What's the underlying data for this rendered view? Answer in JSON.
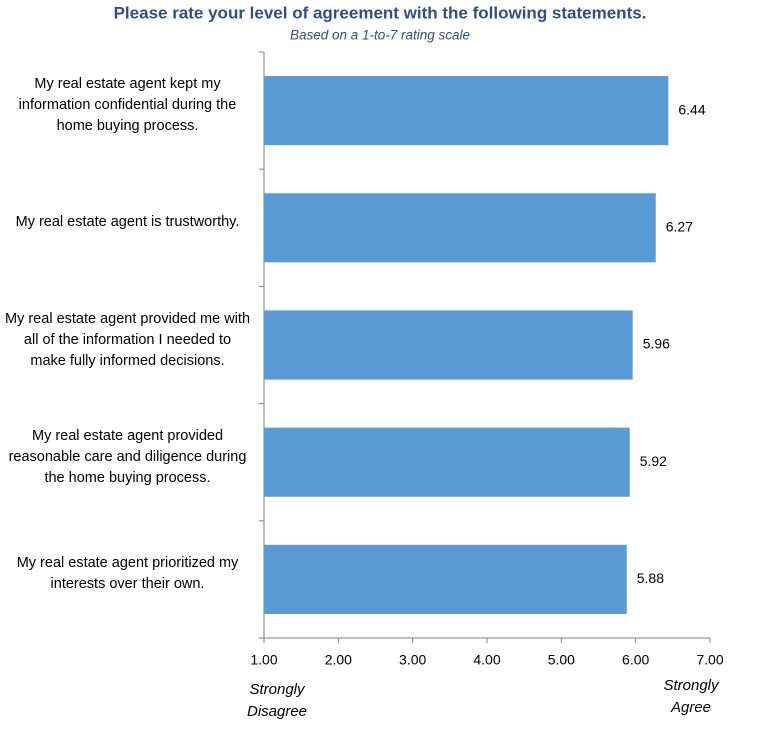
{
  "chart_data": {
    "type": "bar",
    "orientation": "horizontal",
    "title": "Please rate your level of agreement with the following statements.",
    "subtitle": "Based on a 1-to-7 rating scale",
    "categories": [
      "My real estate agent kept my information confidential during the home buying process.",
      "My real estate agent is trustworthy.",
      "My real estate agent provided me with all of the information I needed to make fully informed decisions.",
      "My real estate agent provided reasonable care and diligence during the home buying process.",
      "My real estate agent prioritized my interests over their own."
    ],
    "values": [
      6.44,
      6.27,
      5.96,
      5.92,
      5.88
    ],
    "color": "#5b9bd5",
    "xlim": [
      1,
      7
    ],
    "xticks": [
      {
        "value": 1,
        "label": "1.00"
      },
      {
        "value": 2,
        "label": "2.00"
      },
      {
        "value": 3,
        "label": "3.00"
      },
      {
        "value": 4,
        "label": "4.00"
      },
      {
        "value": 5,
        "label": "5.00"
      },
      {
        "value": 6,
        "label": "6.00"
      },
      {
        "value": 7,
        "label": "7.00"
      }
    ],
    "x_low_label": "Strongly Disagree",
    "x_high_label": "Strongly Agree",
    "grid": false
  }
}
